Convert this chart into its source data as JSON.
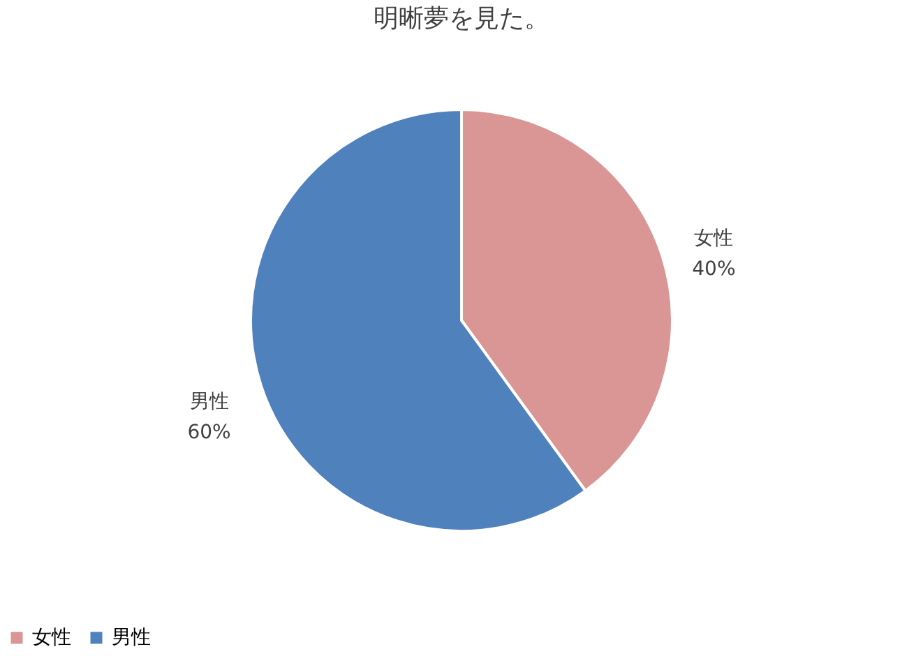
{
  "chart_data": {
    "type": "pie",
    "title": "明晰夢を見た。",
    "categories": [
      "女性",
      "男性"
    ],
    "values": [
      40,
      60
    ],
    "colors": [
      "#d99694",
      "#4f81bd"
    ],
    "value_labels": [
      "40%",
      "60%"
    ],
    "legend": "bottom"
  }
}
